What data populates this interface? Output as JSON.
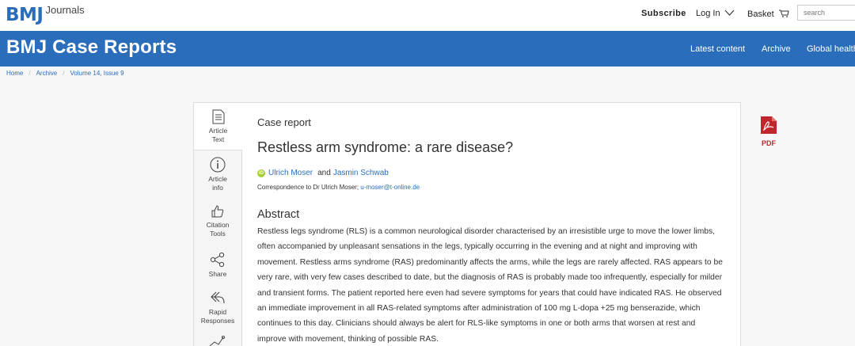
{
  "header": {
    "logo_bmj": "BMJ",
    "logo_journals": "Journals",
    "subscribe_label": "Subscribe",
    "login_label": "Log In",
    "basket_label": "Basket",
    "search_placeholder": "search"
  },
  "journal_bar": {
    "title": "BMJ Case Reports",
    "nav": [
      "Latest content",
      "Archive",
      "Global health"
    ]
  },
  "breadcrumb": [
    "Home",
    "Archive",
    "Volume 14, Issue 9"
  ],
  "sidebar_tools": [
    {
      "icon": "document-icon",
      "label_line1": "Article",
      "label_line2": "Text"
    },
    {
      "icon": "info-icon",
      "label_line1": "Article",
      "label_line2": "info"
    },
    {
      "icon": "thumbs-up-icon",
      "label_line1": "Citation",
      "label_line2": "Tools"
    },
    {
      "icon": "share-icon",
      "label_line1": "Share",
      "label_line2": ""
    },
    {
      "icon": "reply-icon",
      "label_line1": "Rapid",
      "label_line2": "Responses"
    }
  ],
  "article": {
    "type": "Case report",
    "title": "Restless arm syndrome: a rare disease?",
    "orcid_badge": "iD",
    "author1": "Ulrich Moser",
    "and": "and",
    "author2": "Jasmin Schwab",
    "correspondence_prefix": "Correspondence to Dr Ulrich Moser; ",
    "correspondence_email": "u-moser@t-online.de",
    "pdf_label": "PDF",
    "abstract_heading": "Abstract",
    "abstract_text": "Restless legs syndrome (RLS) is a common neurological disorder characterised by an irresistible urge to move the lower limbs, often accompanied by unpleasant sensations in the legs, typically occurring in the evening and at night and improving with movement. Restless arms syndrome (RAS) predominantly affects the arms, while the legs are rarely affected. RAS appears to be very rare, with very few cases described to date, but the diagnosis of RAS is probably made too infrequently, especially for milder and transient forms. The patient reported here even had severe symptoms for years that could have indicated RAS. He observed an immediate improvement in all RAS-related symptoms after administration of 100 mg L-dopa +25 mg benserazide, which continues to this day. Clinicians should always be alert for RLS-like symptoms in one or both arms that worsen at rest and improve with movement, thinking of possible RAS."
  },
  "colors": {
    "brand_blue": "#2a6ebb",
    "pdf_red": "#c0272d",
    "orcid_green": "#a6ce39"
  }
}
